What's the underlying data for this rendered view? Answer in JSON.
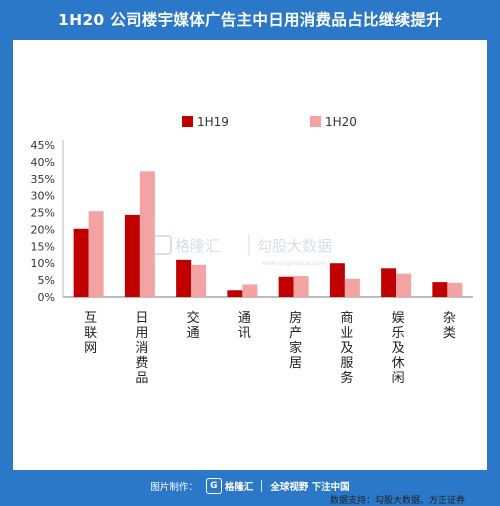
{
  "header": {
    "title": "1H20 公司楼宇媒体广告主中日用消费品占比继续提升"
  },
  "chart_data": {
    "type": "bar",
    "categories": [
      "互联网",
      "日用消费品",
      "交通",
      "通讯",
      "房产家居",
      "商业及服务",
      "娱乐及休闲",
      "杂类"
    ],
    "series": [
      {
        "name": "1H19",
        "values": [
          20.2,
          24.3,
          11.0,
          2.0,
          6.0,
          10.0,
          8.5,
          4.4
        ],
        "color": "#c00000"
      },
      {
        "name": "1H20",
        "values": [
          25.4,
          37.2,
          9.5,
          3.7,
          6.2,
          5.4,
          6.9,
          4.2
        ],
        "color": "#f4a3a3"
      }
    ],
    "ylim": [
      0,
      45
    ],
    "yticks": [
      "0%",
      "5%",
      "10%",
      "15%",
      "20%",
      "25%",
      "30%",
      "35%",
      "40%",
      "45%"
    ],
    "legend": "top-center",
    "grid": false
  },
  "watermark": {
    "brand1": "格隆汇",
    "brand2": "勾股大数据",
    "url": "www.gogudata.com"
  },
  "source": "数据支持：勾股大数据、方正证券",
  "footer": {
    "made_by": "图片制作：",
    "logo_letter": "G",
    "logo_text": "格隆汇",
    "slogan": "全球视野 下注中国"
  }
}
